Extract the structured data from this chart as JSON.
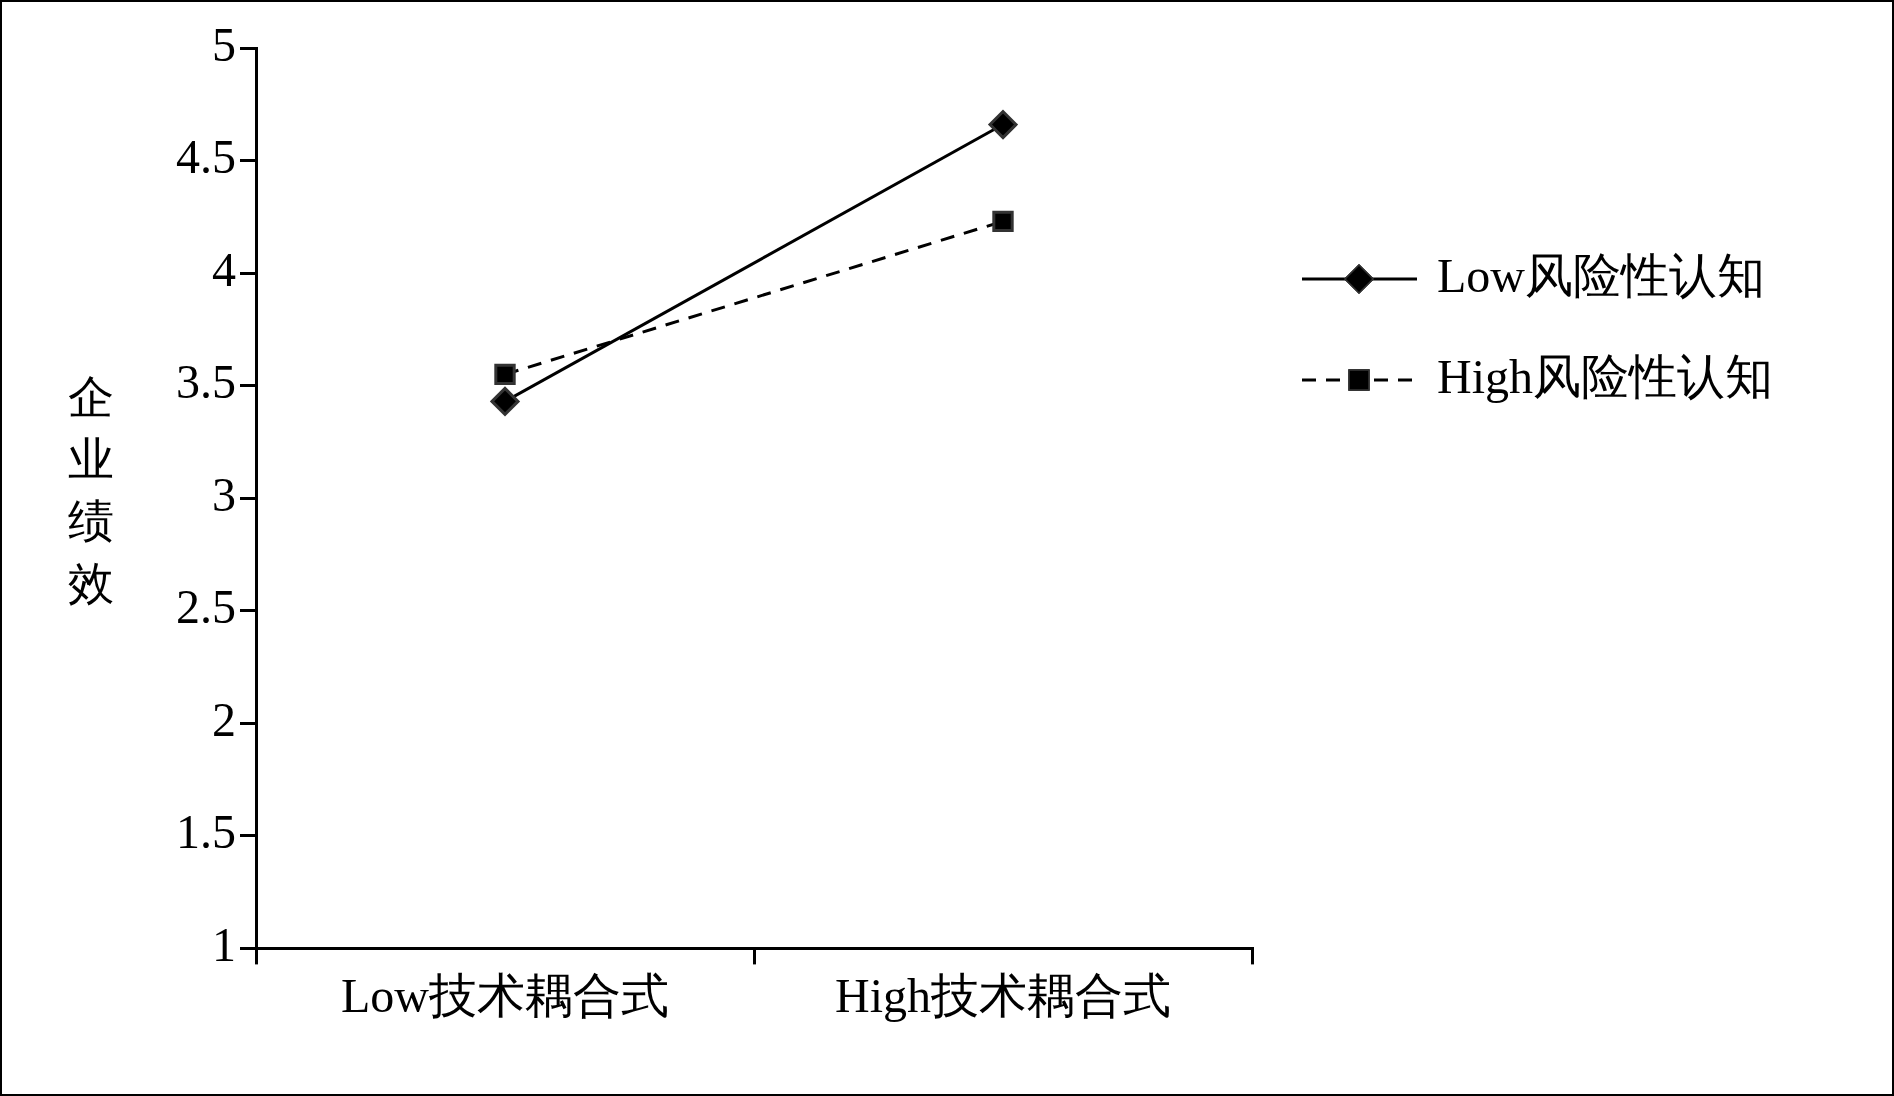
{
  "chart_data": {
    "type": "line",
    "ylabel": "企业绩效",
    "categories": [
      "Low技术耦合式",
      "High技术耦合式"
    ],
    "series": [
      {
        "name": "Low风险性认知",
        "color": "#000000",
        "values": [
          3.43,
          4.66
        ],
        "marker": "diamond",
        "line_style": "solid"
      },
      {
        "name": "High风险性认知",
        "color": "#000000",
        "values": [
          3.55,
          4.23
        ],
        "marker": "square",
        "line_style": "dashed"
      }
    ],
    "ylim": [
      1,
      5
    ],
    "yticks": [
      1,
      1.5,
      2,
      2.5,
      3,
      3.5,
      4,
      4.5,
      5
    ],
    "grid": false,
    "legend": "right"
  }
}
